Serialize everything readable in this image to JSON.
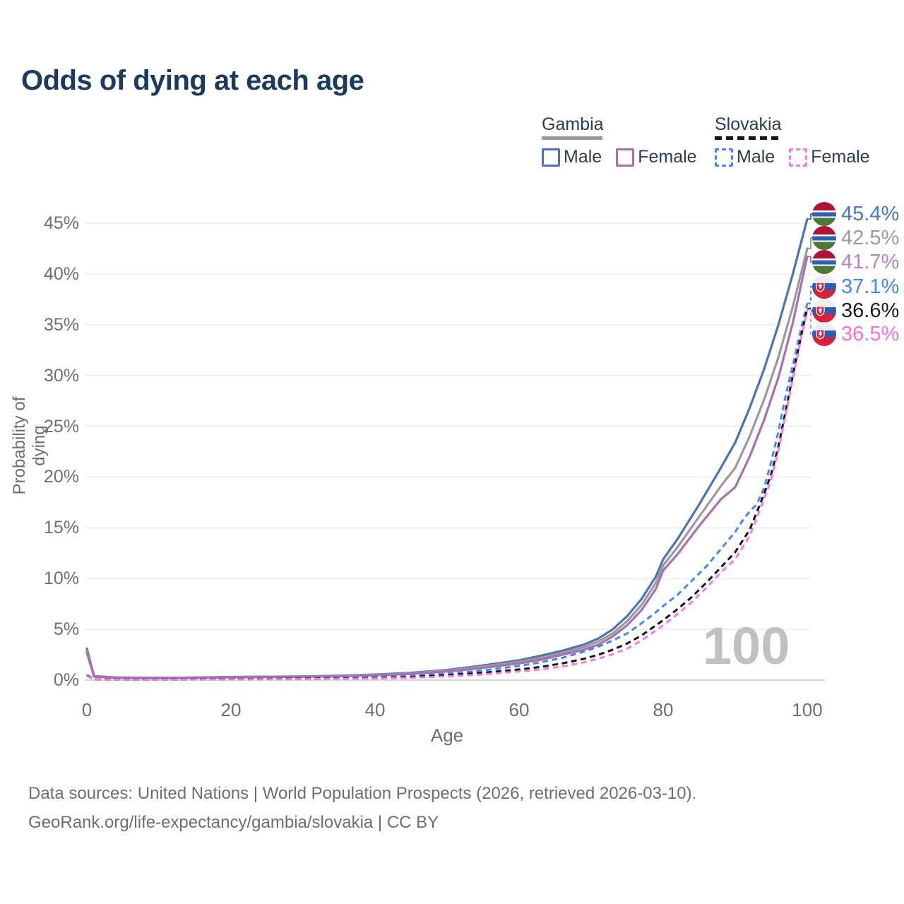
{
  "title": "Odds of dying at each age",
  "legend": {
    "groups": [
      {
        "country": "Gambia",
        "underline_style": "solid",
        "underline_color": "#9a9a9a",
        "items": [
          {
            "label": "Male",
            "color": "#4a74b4",
            "dashed": false
          },
          {
            "label": "Female",
            "color": "#a96fb0",
            "dashed": false
          }
        ]
      },
      {
        "country": "Slovakia",
        "underline_style": "dashed",
        "underline_color": "#141414",
        "items": [
          {
            "label": "Male",
            "color": "#4189f2",
            "dashed": true
          },
          {
            "label": "Female",
            "color": "#fb7ae1",
            "dashed": true
          }
        ]
      }
    ]
  },
  "chart_data": {
    "type": "line",
    "title": "Odds of dying at each age",
    "xlabel": "Age",
    "ylabel": "Probability of dying",
    "xlim": [
      0,
      100
    ],
    "ylim_percent": [
      0,
      45
    ],
    "x_ticks": [
      0,
      20,
      40,
      60,
      80,
      100
    ],
    "y_ticks": [
      "0%",
      "5%",
      "10%",
      "15%",
      "20%",
      "25%",
      "30%",
      "35%",
      "40%",
      "45%"
    ],
    "grid": true,
    "watermark": "100",
    "legend_position": "top-right",
    "series": [
      {
        "name": "Gambia male",
        "color": "#4a74b4",
        "dashed": false,
        "end_label": "45.4%",
        "end_label_color": "#4a77c2",
        "flag": "gambia",
        "points": [
          [
            0,
            3.1
          ],
          [
            1,
            0.4
          ],
          [
            4,
            0.27
          ],
          [
            8,
            0.23
          ],
          [
            12,
            0.23
          ],
          [
            16,
            0.27
          ],
          [
            20,
            0.31
          ],
          [
            25,
            0.34
          ],
          [
            30,
            0.37
          ],
          [
            35,
            0.44
          ],
          [
            40,
            0.55
          ],
          [
            45,
            0.72
          ],
          [
            50,
            1.0
          ],
          [
            55,
            1.45
          ],
          [
            60,
            1.95
          ],
          [
            63,
            2.4
          ],
          [
            66,
            2.9
          ],
          [
            69,
            3.5
          ],
          [
            71,
            4.1
          ],
          [
            73,
            5.0
          ],
          [
            75,
            6.3
          ],
          [
            77,
            8.0
          ],
          [
            79,
            10.2
          ],
          [
            80,
            11.9
          ],
          [
            82,
            13.9
          ],
          [
            85,
            17.3
          ],
          [
            88,
            20.9
          ],
          [
            90,
            23.4
          ],
          [
            92,
            26.8
          ],
          [
            94,
            30.6
          ],
          [
            96,
            35.0
          ],
          [
            98,
            40.0
          ],
          [
            100,
            45.4
          ]
        ]
      },
      {
        "name": "Gambia (both sexes)",
        "color": "#9a9a9a",
        "dashed": false,
        "end_label": "42.5%",
        "end_label_color": "#9b9b9b",
        "flag": "gambia",
        "points": [
          [
            0,
            2.9
          ],
          [
            1,
            0.37
          ],
          [
            4,
            0.25
          ],
          [
            8,
            0.21
          ],
          [
            12,
            0.21
          ],
          [
            16,
            0.25
          ],
          [
            20,
            0.29
          ],
          [
            25,
            0.32
          ],
          [
            30,
            0.35
          ],
          [
            35,
            0.41
          ],
          [
            40,
            0.51
          ],
          [
            45,
            0.67
          ],
          [
            50,
            0.93
          ],
          [
            55,
            1.33
          ],
          [
            60,
            1.8
          ],
          [
            63,
            2.2
          ],
          [
            66,
            2.7
          ],
          [
            69,
            3.25
          ],
          [
            71,
            3.8
          ],
          [
            73,
            4.6
          ],
          [
            75,
            5.8
          ],
          [
            77,
            7.4
          ],
          [
            79,
            9.6
          ],
          [
            80,
            11.3
          ],
          [
            82,
            13.1
          ],
          [
            85,
            16.1
          ],
          [
            88,
            19.1
          ],
          [
            90,
            20.9
          ],
          [
            92,
            24.0
          ],
          [
            94,
            27.6
          ],
          [
            96,
            31.8
          ],
          [
            98,
            36.8
          ],
          [
            100,
            42.5
          ]
        ]
      },
      {
        "name": "Gambia female",
        "color": "#a96fb0",
        "dashed": false,
        "end_label": "41.7%",
        "end_label_color": "#bd7ec6",
        "flag": "gambia",
        "points": [
          [
            0,
            2.7
          ],
          [
            1,
            0.34
          ],
          [
            4,
            0.23
          ],
          [
            8,
            0.2
          ],
          [
            12,
            0.2
          ],
          [
            16,
            0.23
          ],
          [
            20,
            0.27
          ],
          [
            25,
            0.3
          ],
          [
            30,
            0.33
          ],
          [
            35,
            0.38
          ],
          [
            40,
            0.47
          ],
          [
            45,
            0.62
          ],
          [
            50,
            0.85
          ],
          [
            55,
            1.2
          ],
          [
            60,
            1.65
          ],
          [
            63,
            2.0
          ],
          [
            66,
            2.5
          ],
          [
            69,
            3.0
          ],
          [
            71,
            3.5
          ],
          [
            73,
            4.3
          ],
          [
            75,
            5.4
          ],
          [
            77,
            6.9
          ],
          [
            79,
            9.0
          ],
          [
            80,
            10.8
          ],
          [
            82,
            12.4
          ],
          [
            85,
            15.2
          ],
          [
            88,
            17.8
          ],
          [
            90,
            19.0
          ],
          [
            92,
            22.0
          ],
          [
            94,
            25.6
          ],
          [
            96,
            29.8
          ],
          [
            98,
            35.2
          ],
          [
            100,
            41.7
          ]
        ]
      },
      {
        "name": "Slovakia male",
        "color": "#4189f2",
        "dashed": true,
        "end_label": "37.1%",
        "end_label_color": "#3d8af2",
        "flag": "slovakia",
        "points": [
          [
            0,
            0.5
          ],
          [
            1,
            0.08
          ],
          [
            5,
            0.05
          ],
          [
            10,
            0.05
          ],
          [
            15,
            0.09
          ],
          [
            20,
            0.12
          ],
          [
            25,
            0.14
          ],
          [
            30,
            0.16
          ],
          [
            35,
            0.21
          ],
          [
            40,
            0.28
          ],
          [
            45,
            0.42
          ],
          [
            50,
            0.63
          ],
          [
            55,
            0.95
          ],
          [
            60,
            1.4
          ],
          [
            63,
            1.75
          ],
          [
            66,
            2.2
          ],
          [
            69,
            2.8
          ],
          [
            71,
            3.3
          ],
          [
            73,
            3.9
          ],
          [
            75,
            4.6
          ],
          [
            77,
            5.6
          ],
          [
            79,
            6.7
          ],
          [
            80,
            7.3
          ],
          [
            82,
            8.4
          ],
          [
            84,
            9.8
          ],
          [
            86,
            11.2
          ],
          [
            88,
            12.9
          ],
          [
            90,
            14.6
          ],
          [
            91,
            15.7
          ],
          [
            92,
            16.6
          ],
          [
            93,
            17.3
          ],
          [
            94,
            18.9
          ],
          [
            95,
            21.5
          ],
          [
            96,
            24.5
          ],
          [
            97,
            28.0
          ],
          [
            98,
            31.0
          ],
          [
            99,
            34.2
          ],
          [
            100,
            37.1
          ]
        ]
      },
      {
        "name": "Slovakia (both sexes)",
        "color": "#141414",
        "dashed": true,
        "end_label": "36.6%",
        "end_label_color": "#1c1c1c",
        "flag": "slovakia",
        "points": [
          [
            0,
            0.45
          ],
          [
            1,
            0.07
          ],
          [
            5,
            0.04
          ],
          [
            10,
            0.04
          ],
          [
            15,
            0.07
          ],
          [
            20,
            0.09
          ],
          [
            25,
            0.11
          ],
          [
            30,
            0.13
          ],
          [
            35,
            0.16
          ],
          [
            40,
            0.21
          ],
          [
            45,
            0.31
          ],
          [
            50,
            0.48
          ],
          [
            55,
            0.73
          ],
          [
            60,
            1.05
          ],
          [
            63,
            1.3
          ],
          [
            66,
            1.65
          ],
          [
            69,
            2.1
          ],
          [
            71,
            2.5
          ],
          [
            73,
            3.0
          ],
          [
            75,
            3.6
          ],
          [
            77,
            4.4
          ],
          [
            79,
            5.4
          ],
          [
            80,
            5.9
          ],
          [
            82,
            7.0
          ],
          [
            84,
            8.2
          ],
          [
            86,
            9.6
          ],
          [
            88,
            11.1
          ],
          [
            90,
            12.6
          ],
          [
            92,
            14.8
          ],
          [
            94,
            18.3
          ],
          [
            95,
            20.3
          ],
          [
            96,
            23.0
          ],
          [
            97,
            26.5
          ],
          [
            98,
            30.0
          ],
          [
            99,
            33.4
          ],
          [
            100,
            36.6
          ]
        ]
      },
      {
        "name": "Slovakia female",
        "color": "#fb7ae1",
        "dashed": true,
        "end_label": "36.5%",
        "end_label_color": "#fb6ede",
        "flag": "slovakia",
        "points": [
          [
            0,
            0.4
          ],
          [
            1,
            0.06
          ],
          [
            5,
            0.03
          ],
          [
            10,
            0.03
          ],
          [
            15,
            0.05
          ],
          [
            20,
            0.07
          ],
          [
            25,
            0.08
          ],
          [
            30,
            0.1
          ],
          [
            35,
            0.12
          ],
          [
            40,
            0.16
          ],
          [
            45,
            0.23
          ],
          [
            50,
            0.36
          ],
          [
            55,
            0.56
          ],
          [
            60,
            0.85
          ],
          [
            63,
            1.05
          ],
          [
            66,
            1.35
          ],
          [
            69,
            1.75
          ],
          [
            71,
            2.1
          ],
          [
            73,
            2.55
          ],
          [
            75,
            3.1
          ],
          [
            77,
            3.9
          ],
          [
            79,
            4.9
          ],
          [
            80,
            5.4
          ],
          [
            82,
            6.5
          ],
          [
            84,
            7.7
          ],
          [
            86,
            9.1
          ],
          [
            88,
            10.6
          ],
          [
            90,
            11.9
          ],
          [
            92,
            14.2
          ],
          [
            94,
            17.8
          ],
          [
            95,
            19.8
          ],
          [
            96,
            22.6
          ],
          [
            97,
            26.1
          ],
          [
            98,
            29.7
          ],
          [
            99,
            33.2
          ],
          [
            100,
            36.5
          ]
        ]
      }
    ]
  },
  "footer": {
    "line1": "Data sources: United Nations | World Population Prospects (2026, retrieved 2026-03-10).",
    "line2": "GeoRank.org/life-expectancy/gambia/slovakia | CC BY"
  }
}
